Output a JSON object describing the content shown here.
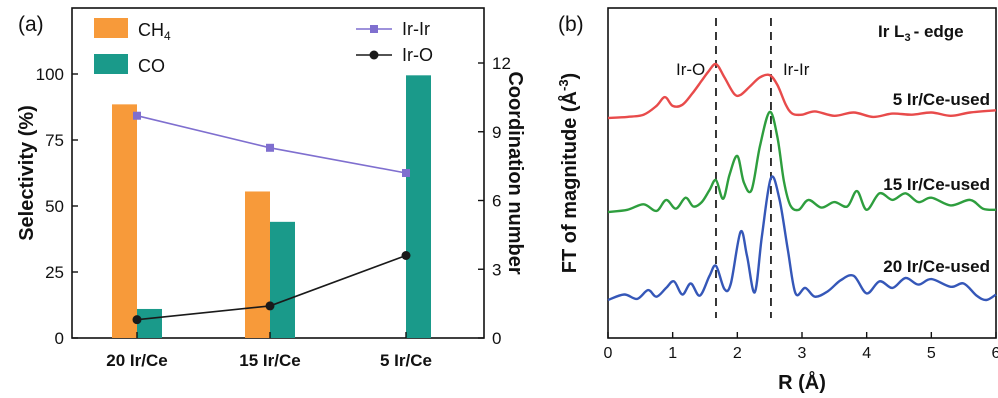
{
  "chart_data": [
    {
      "panel_label": "(a)",
      "type": "bar",
      "categories": [
        "20 Ir/Ce",
        "15 Ir/Ce",
        "5 Ir/Ce"
      ],
      "ylabel": "Selectivity (%)",
      "ylim": [
        0,
        125
      ],
      "yticks": [
        "0",
        "25",
        "50",
        "75",
        "100"
      ],
      "y2label": "Coordination number",
      "y2lim": [
        0,
        14.4
      ],
      "y2ticks": [
        "0",
        "3",
        "6",
        "9",
        "12"
      ],
      "bar_series": [
        {
          "name": "CH",
          "name_sub": "4",
          "color": "#f79a3a",
          "values": [
            88.5,
            55.5,
            0
          ]
        },
        {
          "name": "CO",
          "color": "#1a9a8a",
          "values": [
            11,
            44,
            99.5
          ]
        }
      ],
      "line_series": [
        {
          "name": "Ir-Ir",
          "color": "#7f6fcf",
          "marker": "square",
          "values": [
            9.7,
            8.3,
            7.2
          ]
        },
        {
          "name": "Ir-O",
          "color": "#1a1a1a",
          "marker": "circle",
          "values": [
            0.8,
            1.4,
            3.6
          ]
        }
      ],
      "grid": false
    },
    {
      "panel_label": "(b)",
      "type": "line",
      "title": "Ir L",
      "title_sub": "3",
      "title_suffix": "- edge",
      "xlabel": "R (Å)",
      "ylabel_main": "FT of magnitude (Å",
      "ylabel_sup": "-3",
      "ylabel_end": ")",
      "xlim": [
        0,
        6
      ],
      "xticks": [
        "0",
        "1",
        "2",
        "3",
        "4",
        "5",
        "6"
      ],
      "reference_lines": [
        {
          "label": "Ir-O",
          "x": 1.67
        },
        {
          "label": "Ir-Ir",
          "x": 2.52
        }
      ],
      "series": [
        {
          "name": "5 Ir/Ce-used",
          "color": "#e84b4b",
          "x": [
            0,
            0.3,
            0.55,
            0.75,
            0.88,
            1.0,
            1.15,
            1.3,
            1.45,
            1.55,
            1.67,
            1.8,
            1.95,
            2.05,
            2.2,
            2.35,
            2.5,
            2.62,
            2.75,
            2.85,
            3.0,
            3.2,
            3.5,
            3.8,
            4.1,
            4.4,
            4.7,
            5.0,
            5.3,
            5.6,
            6.0
          ],
          "y": [
            0,
            0.05,
            0.15,
            0.55,
            0.95,
            0.55,
            0.6,
            1.1,
            1.7,
            2.1,
            2.45,
            1.85,
            1.1,
            1.05,
            1.45,
            1.85,
            1.95,
            1.5,
            0.6,
            0.2,
            0.15,
            0.3,
            0.1,
            0.25,
            0.05,
            0.2,
            0.15,
            0.25,
            0.1,
            0.25,
            0.35
          ]
        },
        {
          "name": "15 Ir/Ce-used",
          "color": "#2e9e3e",
          "x": [
            0,
            0.3,
            0.55,
            0.75,
            0.9,
            1.05,
            1.2,
            1.32,
            1.45,
            1.57,
            1.67,
            1.78,
            1.88,
            2.0,
            2.1,
            2.22,
            2.35,
            2.5,
            2.62,
            2.72,
            2.82,
            2.95,
            3.1,
            3.3,
            3.5,
            3.7,
            3.85,
            4.0,
            4.2,
            4.4,
            4.6,
            4.8,
            5.0,
            5.3,
            5.6,
            5.8,
            6.0
          ],
          "y": [
            0,
            0.1,
            0.35,
            0.05,
            0.55,
            0.15,
            0.65,
            0.25,
            0.45,
            1.0,
            1.45,
            0.6,
            1.7,
            2.55,
            1.35,
            1.0,
            3.0,
            4.55,
            3.4,
            1.4,
            0.3,
            0.1,
            0.55,
            0.2,
            0.45,
            0.25,
            0.95,
            0.1,
            0.85,
            0.55,
            0.85,
            0.45,
            0.65,
            0.3,
            0.55,
            0.15,
            0.1
          ]
        },
        {
          "name": "20 Ir/Ce-used",
          "color": "#3557b8",
          "x": [
            0,
            0.25,
            0.45,
            0.62,
            0.75,
            0.9,
            1.02,
            1.15,
            1.28,
            1.42,
            1.57,
            1.67,
            1.8,
            1.9,
            2.05,
            2.15,
            2.27,
            2.38,
            2.52,
            2.65,
            2.78,
            2.9,
            3.05,
            3.2,
            3.4,
            3.6,
            3.8,
            4.0,
            4.2,
            4.4,
            4.6,
            4.8,
            5.0,
            5.3,
            5.5,
            5.7,
            5.85,
            6.0
          ],
          "y": [
            0,
            0.25,
            0.05,
            0.45,
            0.15,
            0.55,
            0.85,
            0.25,
            0.75,
            0.2,
            1.1,
            1.55,
            0.5,
            0.75,
            3.1,
            2.0,
            0.35,
            2.9,
            5.55,
            4.6,
            2.3,
            0.3,
            0.55,
            0.15,
            0.4,
            0.9,
            1.1,
            0.3,
            0.85,
            0.55,
            1.0,
            0.7,
            0.95,
            0.6,
            0.75,
            0.2,
            0.0,
            0.25
          ]
        }
      ],
      "grid": false
    }
  ]
}
